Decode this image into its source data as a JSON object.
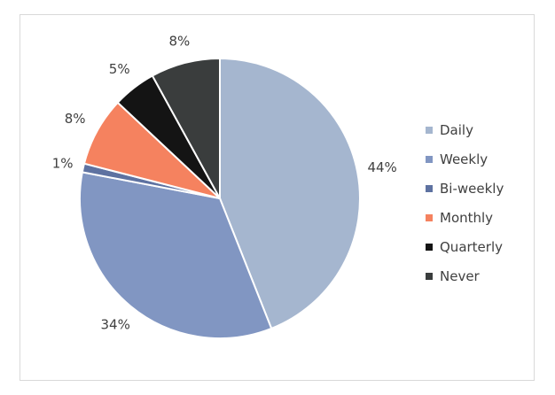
{
  "chart_data": {
    "type": "pie",
    "categories": [
      "Daily",
      "Weekly",
      "Bi-weekly",
      "Monthly",
      "Quarterly",
      "Never"
    ],
    "values": [
      44,
      34,
      1,
      8,
      5,
      8
    ],
    "data_labels": [
      "44%",
      "34%",
      "1%",
      "8%",
      "5%",
      "8%"
    ],
    "colors": [
      "#a5b6cf",
      "#8196c2",
      "#5e72a1",
      "#f5825f",
      "#141414",
      "#3a3d3d"
    ],
    "legend_position": "right",
    "title": ""
  }
}
